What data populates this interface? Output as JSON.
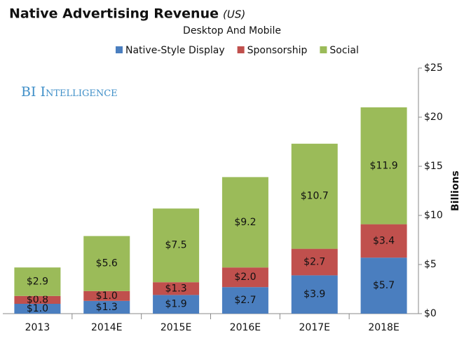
{
  "chart_data": {
    "type": "stacked_bar",
    "title": "Native Advertising Revenue",
    "title_suffix": "(US)",
    "subtitle": "Desktop And Mobile",
    "annotation": "BI Intelligence",
    "y_axis_label": "Billions",
    "categories": [
      "2013",
      "2014E",
      "2015E",
      "2016E",
      "2017E",
      "2018E"
    ],
    "series": [
      {
        "name": "Native-Style Display",
        "color": "#4a7ebf",
        "values": [
          1.0,
          1.3,
          1.9,
          2.7,
          3.9,
          5.7
        ],
        "value_labels": [
          "$1.0",
          "$1.3",
          "$1.9",
          "$2.7",
          "$3.9",
          "$5.7"
        ]
      },
      {
        "name": "Sponsorship",
        "color": "#c0504d",
        "values": [
          0.8,
          1.0,
          1.3,
          2.0,
          2.7,
          3.4
        ],
        "value_labels": [
          "$0.8",
          "$1.0",
          "$1.3",
          "$2.0",
          "$2.7",
          "$3.4"
        ]
      },
      {
        "name": "Social",
        "color": "#9bbb59",
        "values": [
          2.9,
          5.6,
          7.5,
          9.2,
          10.7,
          11.9
        ],
        "value_labels": [
          "$2.9",
          "$5.6",
          "$7.5",
          "$9.2",
          "$10.7",
          "$11.9"
        ]
      }
    ],
    "ylim": [
      0,
      25
    ],
    "yticks": [
      {
        "value": 0,
        "label": "$0"
      },
      {
        "value": 5,
        "label": "$5"
      },
      {
        "value": 10,
        "label": "$10"
      },
      {
        "value": 15,
        "label": "$15"
      },
      {
        "value": 20,
        "label": "$20"
      },
      {
        "value": 25,
        "label": "$25"
      }
    ],
    "y_axis_side": "right",
    "grid": false
  }
}
